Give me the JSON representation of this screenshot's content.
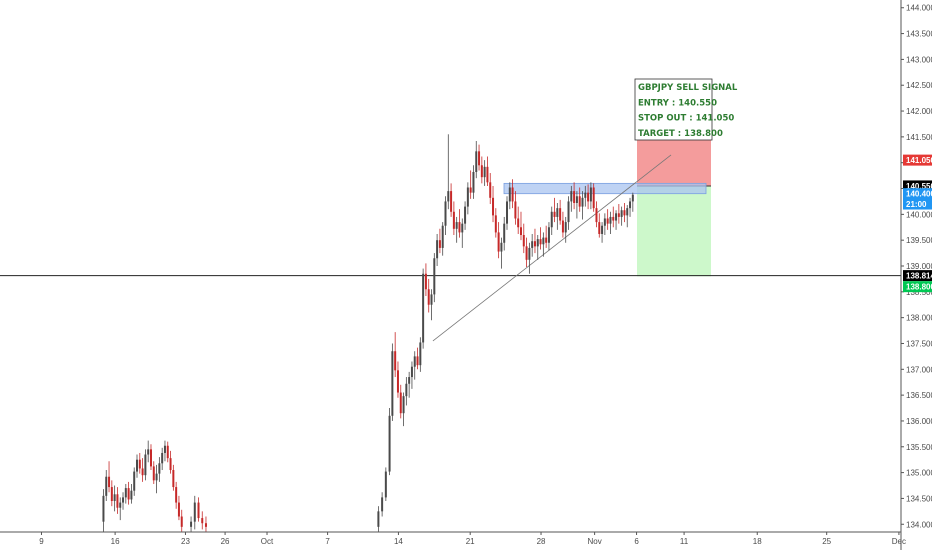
{
  "chart_data": {
    "type": "candlestick",
    "symbol": "GBPJPY",
    "x_ticks": [
      "9",
      "16",
      "23",
      "26",
      "Oct",
      "7",
      "14",
      "21",
      "28",
      "Nov",
      "6",
      "11",
      "18",
      "25",
      "Dec"
    ],
    "y_ticks": [
      "144.000",
      "143.500",
      "143.000",
      "142.500",
      "142.000",
      "141.500",
      "141.000",
      "140.500",
      "140.000",
      "139.500",
      "139.000",
      "138.500",
      "138.000",
      "137.500",
      "137.000",
      "136.500",
      "136.000",
      "135.500",
      "135.000",
      "134.500",
      "134.000"
    ],
    "ylim": [
      133.85,
      144.15
    ],
    "signal": {
      "lines": [
        "GBPJPY SELL SIGNAL",
        "ENTRY : 140.550",
        "STOP OUT : 141.050",
        "TARGET : 138.800"
      ],
      "entry": 140.55,
      "stop": 141.05,
      "target": 138.8
    },
    "price_tags": [
      {
        "label": "141.050",
        "value": 141.05,
        "bg": "#e53935",
        "fg": "#ffffff"
      },
      {
        "label": "140.550",
        "value": 140.55,
        "bg": "#000000",
        "fg": "#ffffff"
      },
      {
        "label": "140.400",
        "value": 140.4,
        "bg": "#2196f3",
        "fg": "#ffffff"
      },
      {
        "label": "21:00",
        "value": 140.2,
        "bg": "#2196f3",
        "fg": "#ffffff"
      },
      {
        "label": "138.814",
        "value": 138.814,
        "bg": "#000000",
        "fg": "#ffffff"
      },
      {
        "label": "138.800",
        "value": 138.6,
        "bg": "#00c853",
        "fg": "#ffffff"
      }
    ],
    "horizontal_line": 138.814,
    "resistance_zone": [
      140.4,
      140.6
    ],
    "trendline": [
      {
        "x": 0.4645,
        "y": 137.55
      },
      {
        "x": 0.72,
        "y": 141.15
      }
    ],
    "colors": {
      "up": "#4a4a4a",
      "down": "#c62828",
      "stop_zone": "#f28b8b",
      "target_zone": "#c8f7c5",
      "resistance": "#aac4f0",
      "signal_text": "#2e7d32"
    },
    "candles": [
      [
        0.111,
        134.05,
        134.68,
        133.85,
        134.55
      ],
      [
        0.114,
        134.55,
        135.05,
        134.45,
        134.92
      ],
      [
        0.117,
        134.92,
        135.22,
        134.62,
        134.72
      ],
      [
        0.12,
        134.72,
        134.85,
        134.35,
        134.45
      ],
      [
        0.123,
        134.45,
        134.75,
        134.25,
        134.58
      ],
      [
        0.126,
        134.58,
        134.72,
        134.2,
        134.32
      ],
      [
        0.129,
        134.32,
        134.52,
        134.08,
        134.42
      ],
      [
        0.132,
        134.42,
        134.62,
        134.28,
        134.52
      ],
      [
        0.135,
        134.52,
        134.78,
        134.4,
        134.7
      ],
      [
        0.138,
        134.7,
        134.82,
        134.38,
        134.48
      ],
      [
        0.141,
        134.48,
        134.78,
        134.4,
        134.65
      ],
      [
        0.144,
        134.65,
        135.1,
        134.55,
        135.02
      ],
      [
        0.147,
        135.02,
        135.35,
        134.9,
        135.25
      ],
      [
        0.15,
        135.25,
        135.38,
        134.98,
        135.08
      ],
      [
        0.153,
        135.08,
        135.28,
        134.82,
        134.95
      ],
      [
        0.156,
        134.95,
        135.45,
        134.85,
        135.35
      ],
      [
        0.159,
        135.35,
        135.62,
        135.2,
        135.45
      ],
      [
        0.162,
        135.45,
        135.55,
        135.05,
        135.12
      ],
      [
        0.165,
        135.12,
        135.22,
        134.78,
        134.85
      ],
      [
        0.168,
        134.85,
        135.15,
        134.6,
        134.98
      ],
      [
        0.171,
        134.98,
        135.3,
        134.82,
        135.18
      ],
      [
        0.174,
        135.18,
        135.48,
        135.05,
        135.38
      ],
      [
        0.177,
        135.38,
        135.62,
        135.22,
        135.52
      ],
      [
        0.18,
        135.52,
        135.6,
        135.2,
        135.28
      ],
      [
        0.183,
        135.28,
        135.42,
        134.98,
        135.05
      ],
      [
        0.186,
        135.05,
        135.15,
        134.65,
        134.72
      ],
      [
        0.189,
        134.72,
        134.82,
        134.3,
        134.42
      ],
      [
        0.192,
        134.42,
        134.55,
        134.08,
        134.15
      ],
      [
        0.195,
        134.15,
        134.28,
        133.85,
        133.95
      ],
      [
        0.205,
        133.95,
        134.15,
        133.85,
        134.05
      ],
      [
        0.209,
        134.05,
        134.55,
        133.9,
        134.42
      ],
      [
        0.213,
        134.42,
        134.52,
        134.05,
        134.12
      ],
      [
        0.217,
        134.12,
        134.25,
        133.9,
        134.02
      ],
      [
        0.221,
        134.02,
        134.15,
        133.85,
        133.95
      ],
      [
        0.406,
        133.95,
        134.35,
        133.85,
        134.25
      ],
      [
        0.41,
        134.25,
        134.62,
        134.15,
        134.52
      ],
      [
        0.414,
        134.52,
        135.1,
        134.45,
        135.02
      ],
      [
        0.418,
        135.02,
        136.25,
        134.95,
        136.1
      ],
      [
        0.421,
        136.1,
        137.5,
        136.0,
        137.35
      ],
      [
        0.424,
        137.35,
        137.72,
        136.85,
        136.98
      ],
      [
        0.427,
        136.98,
        137.15,
        136.45,
        136.55
      ],
      [
        0.43,
        136.55,
        136.7,
        136.05,
        136.15
      ],
      [
        0.433,
        136.15,
        136.55,
        135.9,
        136.48
      ],
      [
        0.436,
        136.48,
        136.85,
        136.3,
        136.72
      ],
      [
        0.439,
        136.72,
        136.95,
        136.45,
        136.85
      ],
      [
        0.442,
        136.85,
        137.15,
        136.62,
        137.05
      ],
      [
        0.445,
        137.05,
        137.35,
        136.8,
        137.25
      ],
      [
        0.448,
        137.25,
        137.42,
        137.0,
        137.08
      ],
      [
        0.451,
        137.08,
        137.62,
        136.95,
        137.52
      ],
      [
        0.454,
        137.52,
        138.95,
        137.4,
        138.85
      ],
      [
        0.457,
        138.85,
        139.05,
        138.42,
        138.55
      ],
      [
        0.46,
        138.55,
        138.75,
        138.1,
        138.25
      ],
      [
        0.463,
        138.25,
        138.55,
        137.95,
        138.45
      ],
      [
        0.466,
        138.45,
        139.25,
        138.3,
        139.15
      ],
      [
        0.469,
        139.15,
        139.62,
        139.0,
        139.5
      ],
      [
        0.472,
        139.5,
        139.72,
        139.25,
        139.35
      ],
      [
        0.475,
        139.35,
        139.85,
        139.2,
        139.78
      ],
      [
        0.478,
        139.78,
        140.35,
        139.6,
        140.25
      ],
      [
        0.481,
        140.25,
        141.55,
        140.1,
        140.45
      ],
      [
        0.484,
        140.45,
        140.6,
        139.95,
        140.05
      ],
      [
        0.487,
        140.05,
        140.25,
        139.6,
        139.72
      ],
      [
        0.49,
        139.72,
        139.95,
        139.45,
        139.85
      ],
      [
        0.493,
        139.85,
        140.1,
        139.55,
        139.65
      ],
      [
        0.496,
        139.65,
        139.92,
        139.35,
        139.82
      ],
      [
        0.499,
        139.82,
        140.25,
        139.7,
        140.15
      ],
      [
        0.502,
        140.15,
        140.62,
        140.0,
        140.52
      ],
      [
        0.505,
        140.52,
        140.85,
        140.3,
        140.42
      ],
      [
        0.508,
        140.42,
        140.95,
        140.3,
        140.82
      ],
      [
        0.511,
        140.82,
        141.42,
        140.7,
        141.22
      ],
      [
        0.514,
        141.22,
        141.35,
        140.85,
        140.95
      ],
      [
        0.517,
        140.95,
        141.12,
        140.6,
        140.72
      ],
      [
        0.52,
        140.72,
        141.05,
        140.55,
        140.92
      ],
      [
        0.523,
        140.92,
        141.12,
        140.55,
        140.62
      ],
      [
        0.526,
        140.62,
        140.8,
        140.2,
        140.32
      ],
      [
        0.529,
        140.32,
        140.55,
        139.85,
        139.98
      ],
      [
        0.532,
        139.98,
        140.12,
        139.55,
        139.65
      ],
      [
        0.535,
        139.65,
        139.85,
        139.15,
        139.28
      ],
      [
        0.538,
        139.28,
        139.55,
        138.95,
        139.45
      ],
      [
        0.541,
        139.45,
        139.95,
        139.3,
        139.82
      ],
      [
        0.544,
        139.82,
        140.35,
        139.7,
        140.25
      ],
      [
        0.547,
        140.25,
        140.62,
        140.1,
        140.52
      ],
      [
        0.55,
        140.52,
        140.68,
        140.12,
        140.25
      ],
      [
        0.553,
        140.25,
        140.45,
        139.8,
        139.92
      ],
      [
        0.556,
        139.92,
        140.15,
        139.62,
        139.75
      ],
      [
        0.559,
        139.75,
        140.05,
        139.5,
        139.6
      ],
      [
        0.562,
        139.6,
        139.82,
        139.25,
        139.38
      ],
      [
        0.565,
        139.38,
        139.55,
        138.98,
        139.12
      ],
      [
        0.568,
        139.12,
        139.45,
        138.85,
        139.35
      ],
      [
        0.571,
        139.35,
        139.62,
        139.18,
        139.48
      ],
      [
        0.574,
        139.48,
        139.72,
        139.25,
        139.38
      ],
      [
        0.577,
        139.38,
        139.6,
        139.12,
        139.52
      ],
      [
        0.58,
        139.52,
        139.75,
        139.32,
        139.42
      ],
      [
        0.583,
        139.42,
        139.65,
        139.18,
        139.55
      ],
      [
        0.586,
        139.55,
        139.78,
        139.35,
        139.45
      ],
      [
        0.589,
        139.45,
        139.85,
        139.3,
        139.75
      ],
      [
        0.592,
        139.75,
        140.15,
        139.6,
        140.05
      ],
      [
        0.595,
        140.05,
        140.32,
        139.85,
        139.95
      ],
      [
        0.598,
        139.95,
        140.22,
        139.7,
        140.12
      ],
      [
        0.601,
        140.12,
        140.28,
        139.8,
        139.88
      ],
      [
        0.604,
        139.88,
        140.05,
        139.55,
        139.65
      ],
      [
        0.607,
        139.65,
        139.95,
        139.45,
        139.85
      ],
      [
        0.61,
        139.85,
        140.35,
        139.7,
        140.25
      ],
      [
        0.613,
        140.25,
        140.55,
        140.05,
        140.45
      ],
      [
        0.616,
        140.45,
        140.62,
        140.1,
        140.22
      ],
      [
        0.619,
        140.22,
        140.45,
        139.92,
        140.35
      ],
      [
        0.622,
        140.35,
        140.52,
        140.05,
        140.15
      ],
      [
        0.625,
        140.15,
        140.45,
        139.9,
        140.32
      ],
      [
        0.628,
        140.32,
        140.55,
        140.15,
        140.42
      ],
      [
        0.631,
        140.42,
        140.58,
        140.1,
        140.25
      ],
      [
        0.634,
        140.25,
        140.62,
        140.1,
        140.52
      ],
      [
        0.637,
        140.52,
        140.6,
        140.05,
        140.12
      ],
      [
        0.64,
        140.12,
        140.25,
        139.75,
        139.85
      ],
      [
        0.643,
        139.85,
        140.02,
        139.55,
        139.62
      ],
      [
        0.646,
        139.62,
        139.85,
        139.45,
        139.78
      ],
      [
        0.649,
        139.78,
        140.02,
        139.6,
        139.92
      ],
      [
        0.652,
        139.92,
        140.1,
        139.7,
        139.82
      ],
      [
        0.655,
        139.82,
        140.05,
        139.62,
        139.95
      ],
      [
        0.658,
        139.95,
        140.15,
        139.75,
        139.88
      ],
      [
        0.661,
        139.88,
        140.08,
        139.7,
        140.02
      ],
      [
        0.664,
        140.02,
        140.2,
        139.82,
        139.95
      ],
      [
        0.667,
        139.95,
        140.15,
        139.78,
        140.08
      ],
      [
        0.67,
        140.08,
        140.22,
        139.85,
        139.98
      ],
      [
        0.673,
        139.98,
        140.18,
        139.75,
        140.12
      ],
      [
        0.676,
        140.12,
        140.32,
        139.95,
        140.25
      ],
      [
        0.679,
        140.25,
        140.42,
        140.05,
        140.38
      ]
    ]
  }
}
